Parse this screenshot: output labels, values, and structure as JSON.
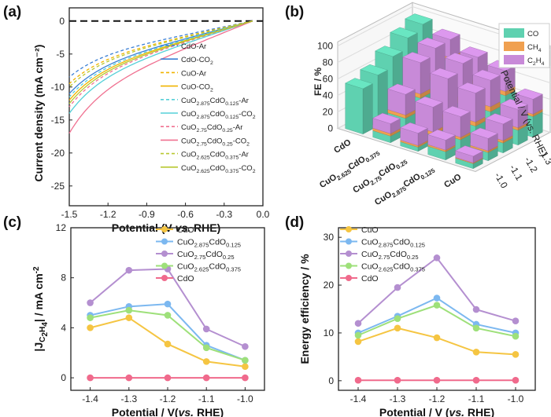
{
  "panels": {
    "a": "(a)",
    "b": "(b)",
    "c": "(c)",
    "d": "(d)"
  },
  "colors": {
    "CuO": "#f5c542",
    "CuO2.875CdO0.125": "#7cb8f0",
    "CuO2.75CdO0.25": "#b48fd0",
    "CuO2.625CdO0.375": "#9ee07a",
    "CdO": "#f06a8c",
    "CO": "#5fd1b0",
    "CH4": "#f0a050",
    "C2H4": "#c88ad8"
  },
  "chart_data": [
    {
      "panel": "a",
      "type": "line",
      "xlabel": "Potential (V vs. RHE)",
      "ylabel": "Current density (mA cm⁻²)",
      "xlim": [
        -1.5,
        0.0
      ],
      "ylim": [
        -28,
        2
      ],
      "xticks": [
        "-1.5",
        "-1.2",
        "-0.9",
        "-0.6",
        "-0.3",
        "0.0"
      ],
      "yticks": [
        "0",
        "-5",
        "-10",
        "-15",
        "-20",
        "-25"
      ],
      "series": [
        {
          "name": "CdO-Ar",
          "color": "#3a7fd5",
          "dash": true,
          "j_at_-1.5": -8.5
        },
        {
          "name": "CdO-CO₂",
          "color": "#3a7fd5",
          "dash": false,
          "j_at_-1.5": -11.0
        },
        {
          "name": "CuO-Ar",
          "color": "#f0b400",
          "dash": true,
          "j_at_-1.5": -9.5
        },
        {
          "name": "CuO-CO₂",
          "color": "#f0b400",
          "dash": false,
          "j_at_-1.5": -12.0
        },
        {
          "name": "CuO2.875CdO0.125-Ar",
          "color": "#55d0d8",
          "dash": true,
          "j_at_-1.5": -11.5
        },
        {
          "name": "CuO2.875CdO0.125-CO₂",
          "color": "#55d0d8",
          "dash": false,
          "j_at_-1.5": -14.0
        },
        {
          "name": "CuO2.75CdO0.25-Ar",
          "color": "#f07090",
          "dash": true,
          "j_at_-1.5": -13.0
        },
        {
          "name": "CuO2.75CdO0.25-CO₂",
          "color": "#f07090",
          "dash": false,
          "j_at_-1.5": -17.0
        },
        {
          "name": "CuO2.625CdO0.375-Ar",
          "color": "#b8c830",
          "dash": true,
          "j_at_-1.5": -10.0
        },
        {
          "name": "CuO2.625CdO0.375-CO₂",
          "color": "#b8c830",
          "dash": false,
          "j_at_-1.5": -12.5
        }
      ],
      "legend": [
        {
          "main": "CdO-Ar",
          "parts": [
            [
              "CdO-Ar",
              ""
            ]
          ],
          "color": "#3a7fd5",
          "dash": true
        },
        {
          "parts": [
            [
              "CdO-CO",
              ""
            ],
            [
              "2",
              "sub"
            ]
          ],
          "color": "#3a7fd5",
          "dash": false
        },
        {
          "parts": [
            [
              "CuO-Ar",
              ""
            ]
          ],
          "color": "#f0b400",
          "dash": true
        },
        {
          "parts": [
            [
              "CuO-CO",
              ""
            ],
            [
              "2",
              "sub"
            ]
          ],
          "color": "#f0b400",
          "dash": false
        },
        {
          "parts": [
            [
              "CuO",
              ""
            ],
            [
              "2.875",
              "sub"
            ],
            [
              "CdO",
              ""
            ],
            [
              "0.125",
              "sub"
            ],
            [
              "-Ar",
              ""
            ]
          ],
          "color": "#55d0d8",
          "dash": true
        },
        {
          "parts": [
            [
              "CuO",
              ""
            ],
            [
              "2.875",
              "sub"
            ],
            [
              "CdO",
              ""
            ],
            [
              "0.125",
              "sub"
            ],
            [
              "-CO",
              ""
            ],
            [
              "2",
              "sub"
            ]
          ],
          "color": "#55d0d8",
          "dash": false
        },
        {
          "parts": [
            [
              "CuO",
              ""
            ],
            [
              "2.75",
              "sub"
            ],
            [
              "CdO",
              ""
            ],
            [
              "0.25",
              "sub"
            ],
            [
              "-Ar",
              ""
            ]
          ],
          "color": "#f07090",
          "dash": true
        },
        {
          "parts": [
            [
              "CuO",
              ""
            ],
            [
              "2.75",
              "sub"
            ],
            [
              "CdO",
              ""
            ],
            [
              "0.25",
              "sub"
            ],
            [
              "-CO",
              ""
            ],
            [
              "2",
              "sub"
            ]
          ],
          "color": "#f07090",
          "dash": false
        },
        {
          "parts": [
            [
              "CuO",
              ""
            ],
            [
              "2.625",
              "sub"
            ],
            [
              "CdO",
              ""
            ],
            [
              "0.375",
              "sub"
            ],
            [
              "-Ar",
              ""
            ]
          ],
          "color": "#b8c830",
          "dash": true
        },
        {
          "parts": [
            [
              "CuO",
              ""
            ],
            [
              "2.625",
              "sub"
            ],
            [
              "CdO",
              ""
            ],
            [
              "0.375",
              "sub"
            ],
            [
              "-CO",
              ""
            ],
            [
              "2",
              "sub"
            ]
          ],
          "color": "#b8c830",
          "dash": false
        }
      ]
    },
    {
      "panel": "b",
      "type": "bar3d",
      "zlabel": "FE / %",
      "potential_label": "Potential / V (vs. RHE)",
      "zticks": [
        "0",
        "20",
        "40",
        "60",
        "80",
        "100"
      ],
      "potentials": [
        "-1.0",
        "-1.1",
        "-1.2",
        "-1.3",
        "-1.4"
      ],
      "catalysts": [
        {
          "parts": [
            [
              "CdO",
              ""
            ]
          ]
        },
        {
          "parts": [
            [
              "CuO",
              ""
            ],
            [
              "2.625",
              "sub"
            ],
            [
              "CdO",
              ""
            ],
            [
              "0.375",
              "sub"
            ]
          ]
        },
        {
          "parts": [
            [
              "CuO",
              ""
            ],
            [
              "2.75",
              "sub"
            ],
            [
              "CdO",
              ""
            ],
            [
              "0.25",
              "sub"
            ]
          ]
        },
        {
          "parts": [
            [
              "CuO",
              ""
            ],
            [
              "2.875",
              "sub"
            ],
            [
              "CdO",
              ""
            ],
            [
              "0.125",
              "sub"
            ]
          ]
        },
        {
          "parts": [
            [
              "CuO",
              ""
            ]
          ]
        }
      ],
      "legend": [
        {
          "parts": [
            [
              "CO",
              ""
            ]
          ],
          "color": "#5fd1b0"
        },
        {
          "parts": [
            [
              "CH",
              ""
            ],
            [
              "4",
              "sub"
            ]
          ],
          "color": "#f0a050"
        },
        {
          "parts": [
            [
              "C",
              ""
            ],
            [
              "2",
              "sub"
            ],
            [
              "H",
              ""
            ],
            [
              "4",
              "sub"
            ]
          ],
          "color": "#c88ad8"
        }
      ],
      "fe_CO": [
        [
          55,
          62,
          75,
          88,
          95
        ],
        [
          8,
          20,
          35,
          45,
          60
        ],
        [
          5,
          10,
          18,
          28,
          40
        ],
        [
          10,
          15,
          22,
          30,
          40
        ],
        [
          6,
          10,
          12,
          18,
          25
        ]
      ],
      "fe_CH4": [
        [
          0,
          0,
          0,
          0,
          0
        ],
        [
          3,
          4,
          5,
          6,
          5
        ],
        [
          2,
          4,
          6,
          8,
          6
        ],
        [
          2,
          3,
          5,
          6,
          5
        ],
        [
          1,
          2,
          3,
          3,
          3
        ]
      ],
      "fe_C2H4": [
        [
          0,
          0,
          0,
          0,
          0
        ],
        [
          12,
          25,
          38,
          35,
          22
        ],
        [
          15,
          30,
          45,
          42,
          30
        ],
        [
          12,
          25,
          35,
          32,
          25
        ],
        [
          8,
          15,
          20,
          22,
          18
        ]
      ]
    },
    {
      "panel": "c",
      "type": "line",
      "xlabel": "Potential / V(vs. RHE)",
      "ylabel_parts": [
        [
          "|J",
          ""
        ],
        [
          "C",
          "sub"
        ],
        [
          "2",
          "subsub"
        ],
        [
          "H",
          "sub"
        ],
        [
          "4",
          "subsub"
        ],
        [
          "| / mA cm",
          ""
        ],
        [
          "-2",
          "sup"
        ]
      ],
      "xlim": [
        -1.45,
        -0.95
      ],
      "ylim": [
        -1,
        12
      ],
      "x": [
        -1.4,
        -1.3,
        -1.2,
        -1.1,
        -1.0
      ],
      "xticks": [
        "-1.4",
        "-1.3",
        "-1.2",
        "-1.1",
        "-1.0"
      ],
      "yticks": [
        "0",
        "4",
        "8",
        "12"
      ],
      "series": [
        {
          "name": "CuO",
          "values": [
            4.0,
            4.8,
            2.7,
            1.3,
            0.9
          ]
        },
        {
          "name": "CuO2.875CdO0.125",
          "values": [
            5.0,
            5.7,
            5.9,
            2.6,
            1.4
          ]
        },
        {
          "name": "CuO2.75CdO0.25",
          "values": [
            6.0,
            8.6,
            8.7,
            3.9,
            2.5
          ]
        },
        {
          "name": "CuO2.625CdO0.375",
          "values": [
            4.8,
            5.4,
            5.0,
            2.4,
            1.4
          ]
        },
        {
          "name": "CdO",
          "values": [
            0.0,
            0.0,
            0.0,
            0.0,
            0.0
          ]
        }
      ]
    },
    {
      "panel": "d",
      "type": "line",
      "xlabel": "Potential / V (vs. RHE)",
      "ylabel": "Energy efficiency / %",
      "xlim": [
        -1.45,
        -0.95
      ],
      "ylim": [
        -2,
        32
      ],
      "x": [
        -1.4,
        -1.3,
        -1.2,
        -1.1,
        -1.0
      ],
      "xticks": [
        "-1.4",
        "-1.3",
        "-1.2",
        "-1.1",
        "-1.0"
      ],
      "yticks": [
        "0",
        "10",
        "20",
        "30"
      ],
      "series": [
        {
          "name": "CuO",
          "values": [
            8.2,
            11.0,
            9.0,
            6.0,
            5.5
          ]
        },
        {
          "name": "CuO2.875CdO0.125",
          "values": [
            10.0,
            13.5,
            17.3,
            11.8,
            10.0
          ]
        },
        {
          "name": "CuO2.75CdO0.25",
          "values": [
            12.0,
            19.5,
            25.7,
            14.9,
            12.5
          ]
        },
        {
          "name": "CuO2.625CdO0.375",
          "values": [
            9.5,
            13.0,
            15.8,
            11.0,
            9.3
          ]
        },
        {
          "name": "CdO",
          "values": [
            0.1,
            0.1,
            0.1,
            0.1,
            0.1
          ]
        }
      ]
    }
  ],
  "series_legend": [
    {
      "key": "CuO",
      "parts": [
        [
          "CuO",
          ""
        ]
      ]
    },
    {
      "key": "CuO2.875CdO0.125",
      "parts": [
        [
          "CuO",
          ""
        ],
        [
          "2.875",
          "sub"
        ],
        [
          "CdO",
          ""
        ],
        [
          "0.125",
          "sub"
        ]
      ]
    },
    {
      "key": "CuO2.75CdO0.25",
      "parts": [
        [
          "CuO",
          ""
        ],
        [
          "2.75",
          "sub"
        ],
        [
          "CdO",
          ""
        ],
        [
          "0.25",
          "sub"
        ]
      ]
    },
    {
      "key": "CuO2.625CdO0.375",
      "parts": [
        [
          "CuO",
          ""
        ],
        [
          "2.625",
          "sub"
        ],
        [
          "CdO",
          ""
        ],
        [
          "0.375",
          "sub"
        ]
      ]
    },
    {
      "key": "CdO",
      "parts": [
        [
          "CdO",
          ""
        ]
      ]
    }
  ]
}
